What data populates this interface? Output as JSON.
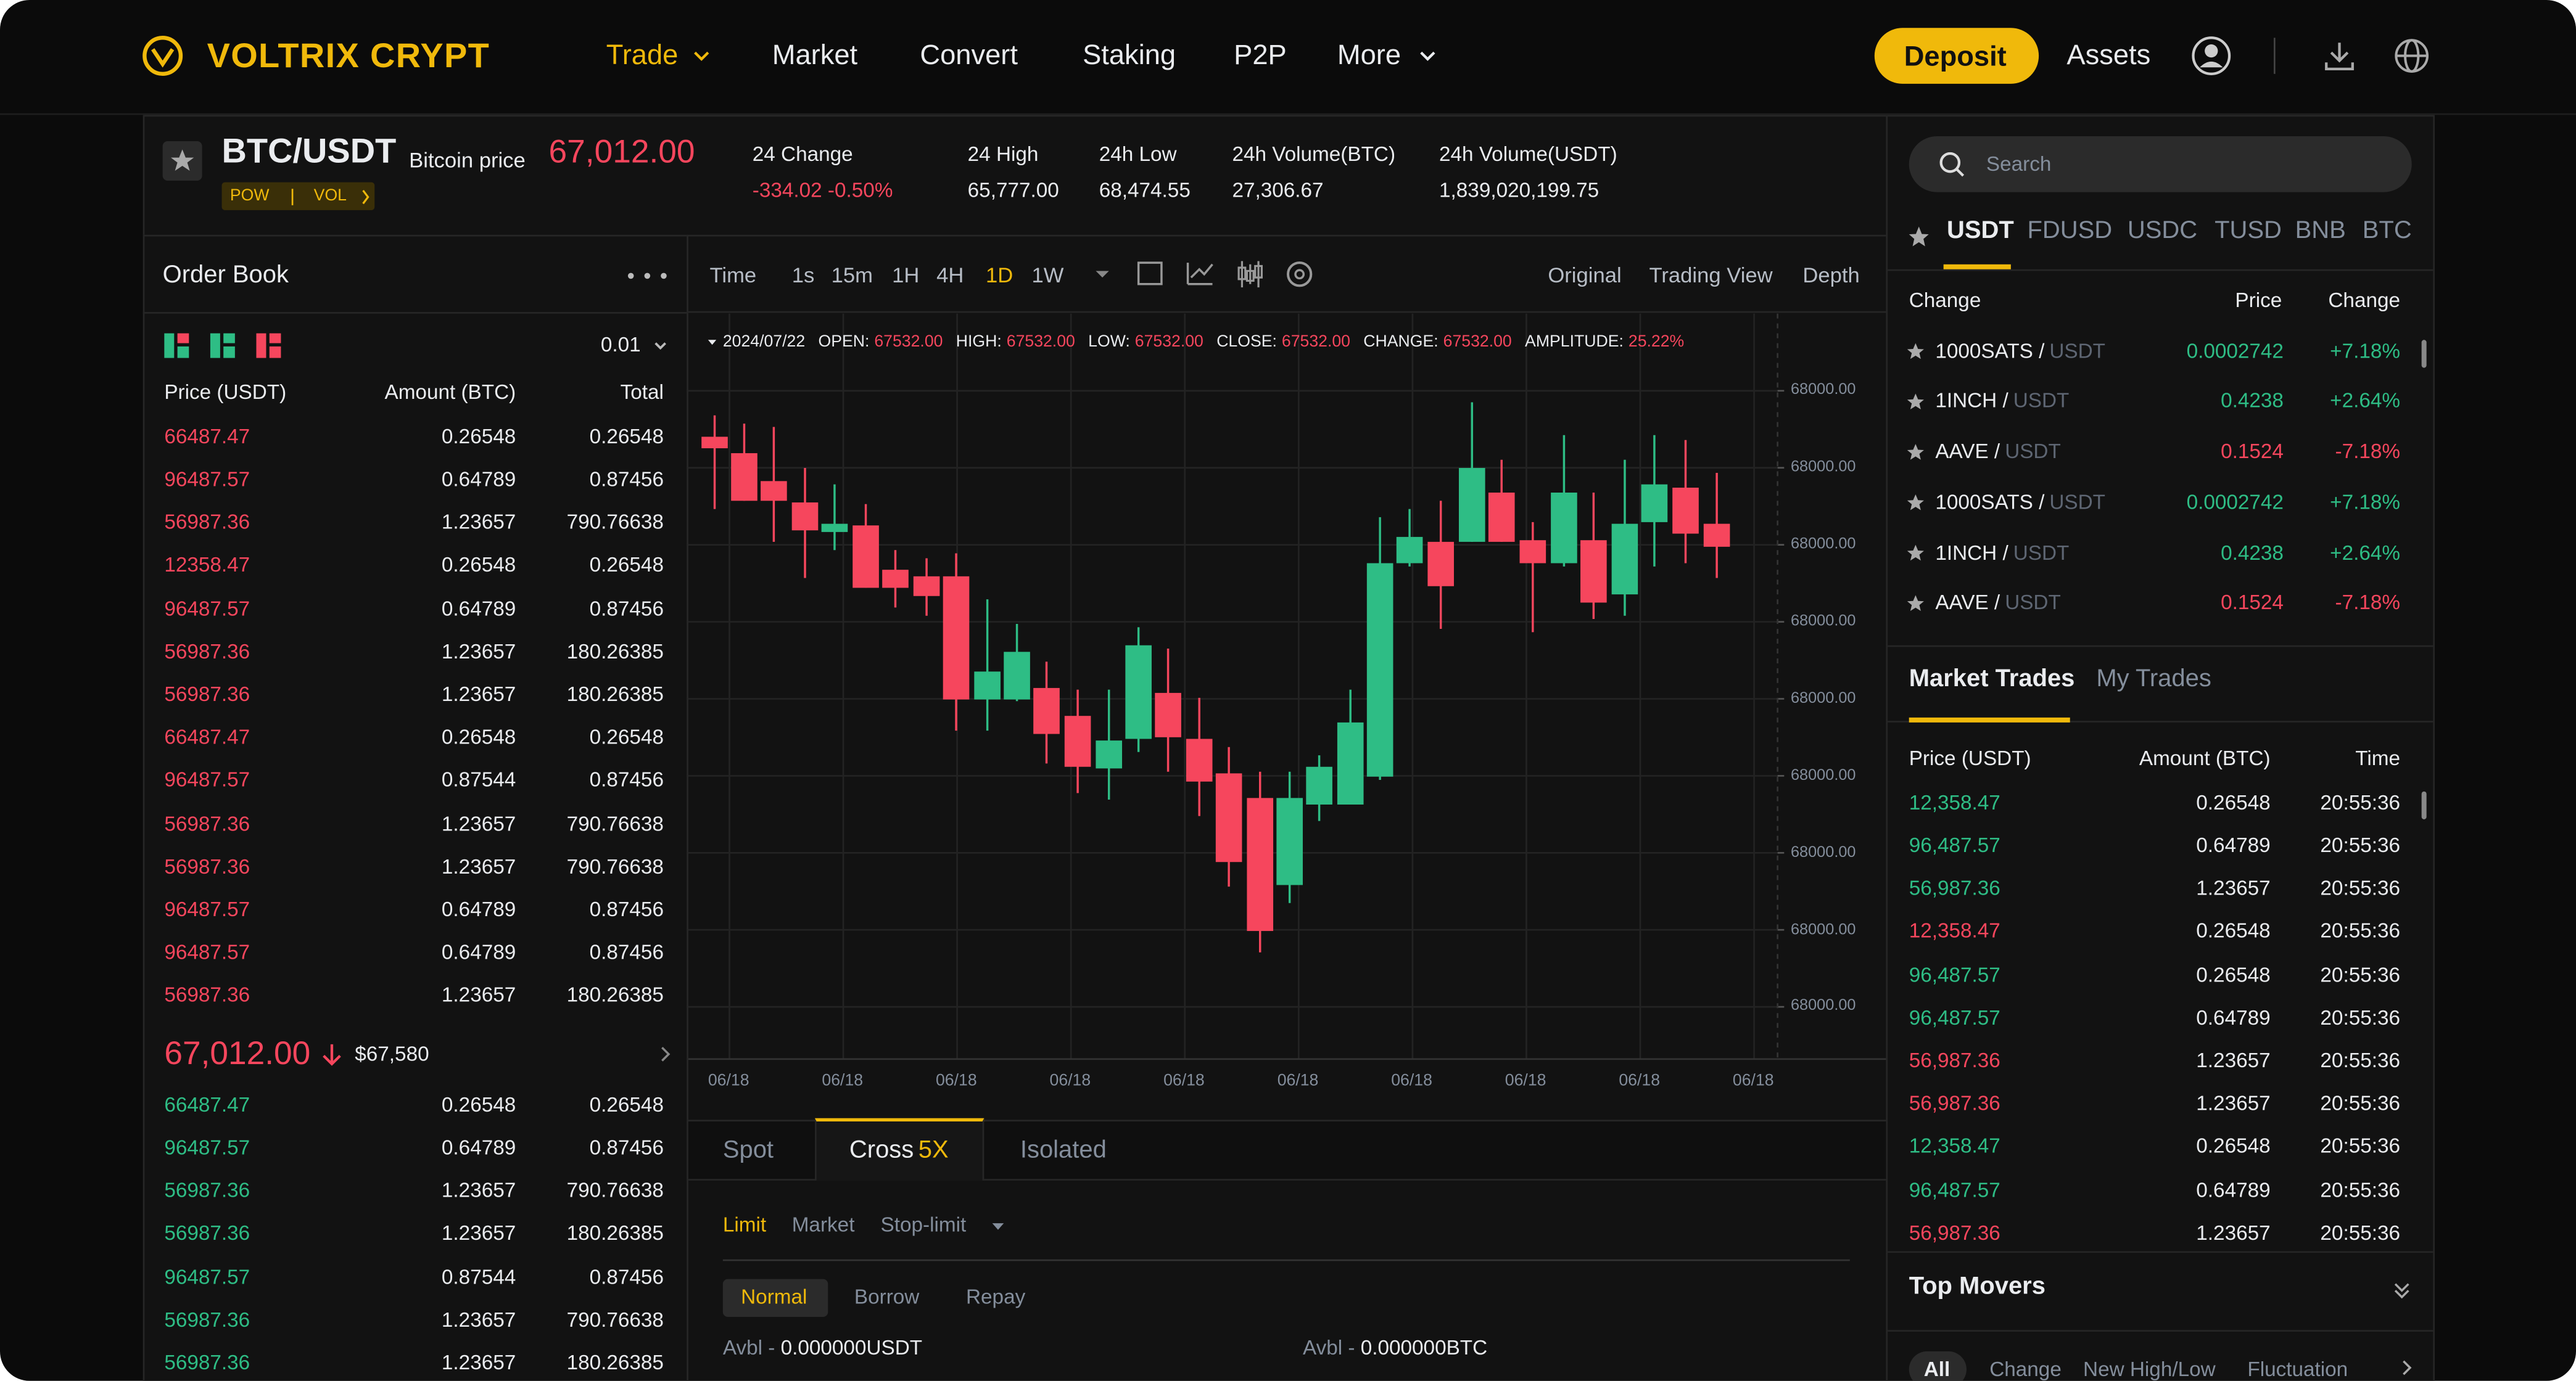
{
  "nav": {
    "brand": "VOLTRIX CRYPT",
    "items": [
      "Trade",
      "Market",
      "Convert",
      "Staking",
      "P2P",
      "More"
    ],
    "deposit": "Deposit",
    "assets": "Assets"
  },
  "ticker": {
    "pair": "BTC/USDT",
    "label": "Bitcoin price",
    "price": "67,012.00",
    "tags": [
      "POW",
      "VOL"
    ],
    "stats": [
      {
        "label": "24 Change",
        "value": "-334.02 -0.50%"
      },
      {
        "label": "24 High",
        "value": "65,777.00"
      },
      {
        "label": "24h Low",
        "value": "68,474.55"
      },
      {
        "label": "24h Volume(BTC)",
        "value": "27,306.67"
      },
      {
        "label": "24h Volume(USDT)",
        "value": "1,839,020,199.75"
      }
    ]
  },
  "order_book": {
    "title": "Order Book",
    "precision": "0.01",
    "columns": [
      "Price (USDT)",
      "Amount (BTC)",
      "Total"
    ],
    "asks": [
      [
        "66487.47",
        "0.26548",
        "0.26548"
      ],
      [
        "96487.57",
        "0.64789",
        "0.87456"
      ],
      [
        "56987.36",
        "1.23657",
        "790.76638"
      ],
      [
        "12358.47",
        "0.26548",
        "0.26548"
      ],
      [
        "96487.57",
        "0.64789",
        "0.87456"
      ],
      [
        "56987.36",
        "1.23657",
        "180.26385"
      ],
      [
        "56987.36",
        "1.23657",
        "180.26385"
      ],
      [
        "66487.47",
        "0.26548",
        "0.26548"
      ],
      [
        "96487.57",
        "0.87544",
        "0.87456"
      ],
      [
        "56987.36",
        "1.23657",
        "790.76638"
      ],
      [
        "56987.36",
        "1.23657",
        "790.76638"
      ],
      [
        "96487.57",
        "0.64789",
        "0.87456"
      ],
      [
        "96487.57",
        "0.64789",
        "0.87456"
      ],
      [
        "56987.36",
        "1.23657",
        "180.26385"
      ]
    ],
    "last_price": "67,012.00",
    "last_usd": "$67,580",
    "bids": [
      [
        "66487.47",
        "0.26548",
        "0.26548"
      ],
      [
        "96487.57",
        "0.64789",
        "0.87456"
      ],
      [
        "56987.36",
        "1.23657",
        "790.76638"
      ],
      [
        "56987.36",
        "1.23657",
        "180.26385"
      ],
      [
        "96487.57",
        "0.87544",
        "0.87456"
      ],
      [
        "56987.36",
        "1.23657",
        "790.76638"
      ],
      [
        "56987.36",
        "1.23657",
        "180.26385"
      ]
    ]
  },
  "chart": {
    "toolbar": [
      "Time",
      "1s",
      "15m",
      "1H",
      "4H",
      "1D",
      "1W"
    ],
    "views": [
      "Original",
      "Trading View",
      "Depth"
    ],
    "info": {
      "date": "2024/07/22",
      "fields": [
        {
          "label": "OPEN:",
          "value": "67532.00"
        },
        {
          "label": "HIGH:",
          "value": "67532.00"
        },
        {
          "label": "LOW:",
          "value": "67532.00"
        },
        {
          "label": "CLOSE:",
          "value": "67532.00"
        },
        {
          "label": "CHANGE:",
          "value": "67532.00"
        },
        {
          "label": "AMPLITUDE:",
          "value": "25.22%"
        }
      ]
    },
    "y_labels": [
      "68000.00",
      "68000.00",
      "68000.00",
      "68000.00",
      "68000.00",
      "68000.00",
      "68000.00",
      "68000.00",
      "68000.00"
    ],
    "x_labels": [
      "06/18",
      "06/18",
      "06/18",
      "06/18",
      "06/18",
      "06/18",
      "06/18",
      "06/18",
      "06/18",
      "06/18"
    ]
  },
  "order_form": {
    "tabs": [
      "Spot",
      "Cross",
      "Isolated"
    ],
    "cross_badge": "5X",
    "order_types": [
      "Limit",
      "Market",
      "Stop-limit"
    ],
    "modes": [
      "Normal",
      "Borrow",
      "Repay"
    ],
    "avbl": [
      {
        "label": "Avbl - ",
        "value": "0.000000USDT"
      },
      {
        "label": "Avbl - ",
        "value": "0.000000BTC"
      }
    ]
  },
  "markets": {
    "search": "Search",
    "quotes": [
      "USDT",
      "FDUSD",
      "USDC",
      "TUSD",
      "BNB",
      "BTC"
    ],
    "columns": [
      "Change",
      "Price",
      "Change"
    ],
    "rows": [
      {
        "base": "1000SATS /",
        "quote": "USDT",
        "price": "0.0002742",
        "change": "+7.18%"
      },
      {
        "base": "1INCH /",
        "quote": "USDT",
        "price": "0.4238",
        "change": "+2.64%"
      },
      {
        "base": "AAVE /",
        "quote": "USDT",
        "price": "0.1524",
        "change": "-7.18%"
      },
      {
        "base": "1000SATS /",
        "quote": "USDT",
        "price": "0.0002742",
        "change": "+7.18%"
      },
      {
        "base": "1INCH /",
        "quote": "USDT",
        "price": "0.4238",
        "change": "+2.64%"
      },
      {
        "base": "AAVE /",
        "quote": "USDT",
        "price": "0.1524",
        "change": "-7.18%"
      }
    ]
  },
  "trades": {
    "tabs": [
      "Market Trades",
      "My Trades"
    ],
    "columns": [
      "Price (USDT)",
      "Amount (BTC)",
      "Time"
    ],
    "rows": [
      {
        "price": "12,358.47",
        "amount": "0.26548",
        "time": "20:55:36",
        "color": "#2ebd85"
      },
      {
        "price": "96,487.57",
        "amount": "0.64789",
        "time": "20:55:36",
        "color": "#2ebd85"
      },
      {
        "price": "56,987.36",
        "amount": "1.23657",
        "time": "20:55:36",
        "color": "#2ebd85"
      },
      {
        "price": "12,358.47",
        "amount": "0.26548",
        "time": "20:55:36",
        "color": "#f6465d"
      },
      {
        "price": "96,487.57",
        "amount": "0.26548",
        "time": "20:55:36",
        "color": "#2ebd85"
      },
      {
        "price": "96,487.57",
        "amount": "0.64789",
        "time": "20:55:36",
        "color": "#2ebd85"
      },
      {
        "price": "56,987.36",
        "amount": "1.23657",
        "time": "20:55:36",
        "color": "#f6465d"
      },
      {
        "price": "56,987.36",
        "amount": "1.23657",
        "time": "20:55:36",
        "color": "#f6465d"
      },
      {
        "price": "12,358.47",
        "amount": "0.26548",
        "time": "20:55:36",
        "color": "#2ebd85"
      },
      {
        "price": "96,487.57",
        "amount": "0.64789",
        "time": "20:55:36",
        "color": "#2ebd85"
      },
      {
        "price": "56,987.36",
        "amount": "1.23657",
        "time": "20:55:36",
        "color": "#f6465d"
      }
    ]
  },
  "top_movers": {
    "title": "Top Movers",
    "tabs": [
      "All",
      "Change",
      "New High/Low",
      "Fluctuation"
    ]
  }
}
